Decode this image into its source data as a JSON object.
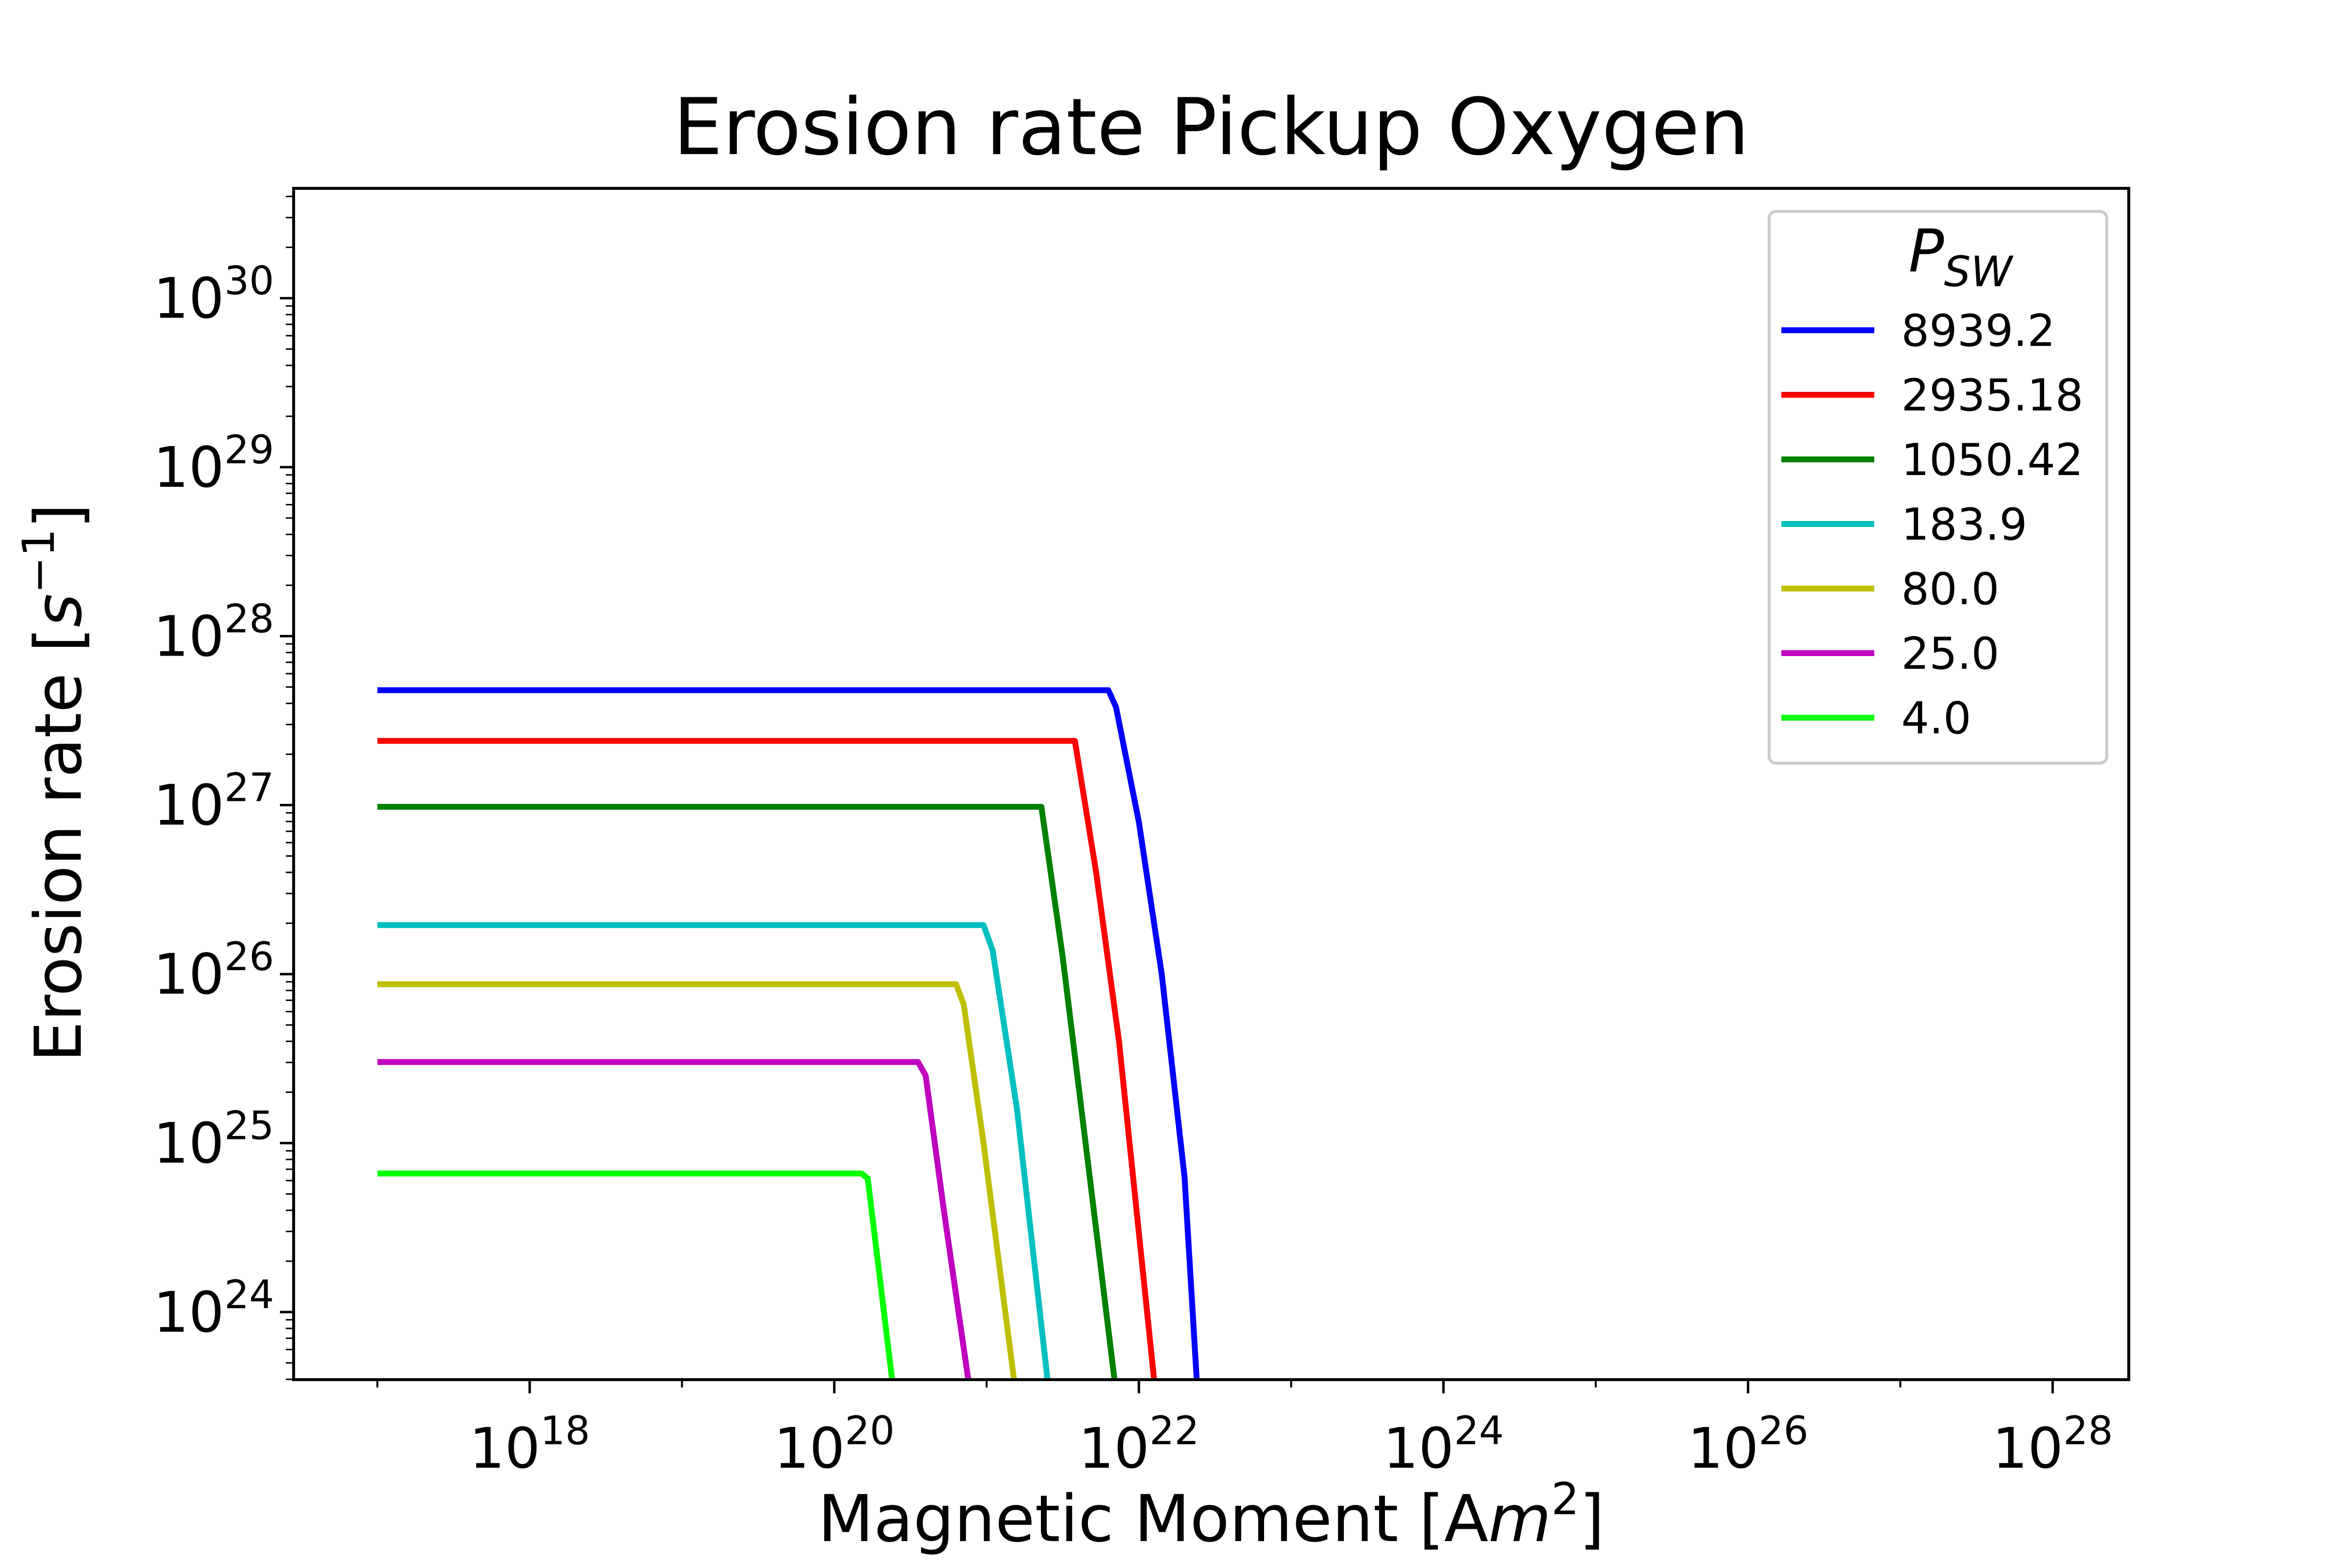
{
  "chart_data": {
    "type": "line",
    "title": "Erosion rate Pickup Oxygen",
    "xlabel": {
      "prefix": "Magnetic Moment [A",
      "var": "m",
      "sup": "2",
      "suffix": "]"
    },
    "ylabel": {
      "prefix": "Erosion rate [",
      "var": "s",
      "sup": "−1",
      "suffix": "]"
    },
    "xscale": "log",
    "yscale": "log",
    "xlim_log10": [
      16.45,
      28.5
    ],
    "ylim_log10": [
      23.6,
      30.65
    ],
    "x_ticks": [
      {
        "base": "10",
        "exp": "18",
        "log": 18
      },
      {
        "base": "10",
        "exp": "20",
        "log": 20
      },
      {
        "base": "10",
        "exp": "22",
        "log": 22
      },
      {
        "base": "10",
        "exp": "24",
        "log": 24
      },
      {
        "base": "10",
        "exp": "26",
        "log": 26
      },
      {
        "base": "10",
        "exp": "28",
        "log": 28
      }
    ],
    "y_ticks": [
      {
        "base": "10",
        "exp": "24",
        "log": 24
      },
      {
        "base": "10",
        "exp": "25",
        "log": 25
      },
      {
        "base": "10",
        "exp": "26",
        "log": 26
      },
      {
        "base": "10",
        "exp": "27",
        "log": 27
      },
      {
        "base": "10",
        "exp": "28",
        "log": 28
      },
      {
        "base": "10",
        "exp": "29",
        "log": 29
      },
      {
        "base": "10",
        "exp": "30",
        "log": 30
      }
    ],
    "legend": {
      "title_base": "P",
      "title_sub": "SW",
      "placement": "top-right"
    },
    "grid": false,
    "series": [
      {
        "name": "8939.2",
        "color": "#0000ff",
        "x_log10": [
          17.0,
          21.8,
          21.85,
          22.0,
          22.15,
          22.3,
          22.38
        ],
        "y_log10": [
          27.68,
          27.68,
          27.58,
          26.9,
          26.0,
          24.8,
          23.6
        ]
      },
      {
        "name": "2935.18",
        "color": "#ff0000",
        "x_log10": [
          17.0,
          21.58,
          21.72,
          21.87,
          22.1
        ],
        "y_log10": [
          27.38,
          27.38,
          26.6,
          25.6,
          23.6
        ]
      },
      {
        "name": "1050.42",
        "color": "#008000",
        "x_log10": [
          17.0,
          21.36,
          21.5,
          21.65,
          21.84
        ],
        "y_log10": [
          26.99,
          26.99,
          26.1,
          25.0,
          23.6
        ]
      },
      {
        "name": "183.9",
        "color": "#00bfbf",
        "x_log10": [
          17.0,
          20.98,
          21.04,
          21.2,
          21.4
        ],
        "y_log10": [
          26.29,
          26.29,
          26.14,
          25.2,
          23.6
        ]
      },
      {
        "name": "80.0",
        "color": "#bfbf00",
        "x_log10": [
          17.0,
          20.8,
          20.85,
          20.98,
          21.18
        ],
        "y_log10": [
          25.94,
          25.94,
          25.82,
          25.0,
          23.6
        ]
      },
      {
        "name": "25.0",
        "color": "#bf00bf",
        "x_log10": [
          17.0,
          20.55,
          20.6,
          20.72,
          20.88
        ],
        "y_log10": [
          25.48,
          25.48,
          25.4,
          24.6,
          23.6
        ]
      },
      {
        "name": "4.0",
        "color": "#00ff00",
        "x_log10": [
          17.0,
          20.18,
          20.22,
          20.38
        ],
        "y_log10": [
          24.82,
          24.82,
          24.79,
          23.6
        ]
      }
    ]
  }
}
